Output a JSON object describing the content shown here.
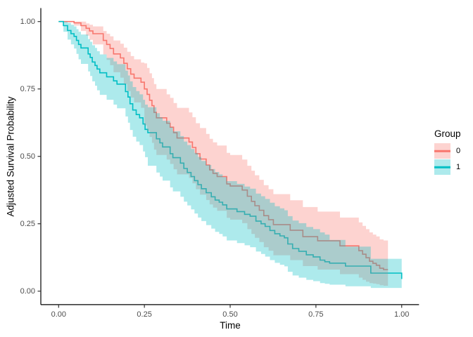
{
  "chart_data": {
    "type": "line",
    "subtype": "step-survival-curves-with-confidence-bands",
    "title": "",
    "xlabel": "Time",
    "ylabel": "Adjusted Survival Probability",
    "xlim": [
      0,
      1
    ],
    "ylim": [
      0,
      1
    ],
    "grid": "off",
    "x_ticks": [
      "0.00",
      "0.25",
      "0.50",
      "0.75",
      "1.00"
    ],
    "x_tick_values": [
      0,
      0.25,
      0.5,
      0.75,
      1
    ],
    "y_ticks": [
      "0.00",
      "0.25",
      "0.50",
      "0.75",
      "1.00"
    ],
    "y_tick_values": [
      0,
      0.25,
      0.5,
      0.75,
      1
    ],
    "legend": {
      "title": "Group",
      "position": "right",
      "entries": [
        {
          "label": "0"
        },
        {
          "label": "1"
        }
      ]
    },
    "band_opacity": 0.32,
    "series": [
      {
        "name": "0",
        "color": "#F8766D",
        "points_format": [
          "time",
          "survival",
          "ci_lower",
          "ci_upper"
        ],
        "points": [
          [
            0.0,
            1.0,
            1.0,
            1.0
          ],
          [
            0.045,
            0.995,
            0.985,
            1.0
          ],
          [
            0.065,
            0.985,
            0.965,
            1.0
          ],
          [
            0.08,
            0.975,
            0.948,
            0.993
          ],
          [
            0.09,
            0.965,
            0.932,
            0.988
          ],
          [
            0.1,
            0.955,
            0.915,
            0.982
          ],
          [
            0.13,
            0.93,
            0.878,
            0.965
          ],
          [
            0.14,
            0.915,
            0.858,
            0.955
          ],
          [
            0.15,
            0.9,
            0.838,
            0.945
          ],
          [
            0.16,
            0.88,
            0.812,
            0.93
          ],
          [
            0.18,
            0.865,
            0.792,
            0.918
          ],
          [
            0.19,
            0.845,
            0.768,
            0.903
          ],
          [
            0.2,
            0.825,
            0.742,
            0.888
          ],
          [
            0.21,
            0.805,
            0.718,
            0.872
          ],
          [
            0.22,
            0.79,
            0.7,
            0.86
          ],
          [
            0.24,
            0.775,
            0.68,
            0.848
          ],
          [
            0.25,
            0.75,
            0.615,
            0.845
          ],
          [
            0.258,
            0.73,
            0.595,
            0.828
          ],
          [
            0.265,
            0.708,
            0.572,
            0.808
          ],
          [
            0.272,
            0.688,
            0.55,
            0.79
          ],
          [
            0.278,
            0.663,
            0.525,
            0.768
          ],
          [
            0.285,
            0.643,
            0.505,
            0.75
          ],
          [
            0.315,
            0.623,
            0.488,
            0.73
          ],
          [
            0.325,
            0.608,
            0.472,
            0.717
          ],
          [
            0.335,
            0.588,
            0.452,
            0.698
          ],
          [
            0.345,
            0.568,
            0.433,
            0.68
          ],
          [
            0.38,
            0.553,
            0.42,
            0.663
          ],
          [
            0.39,
            0.533,
            0.4,
            0.645
          ],
          [
            0.4,
            0.51,
            0.378,
            0.623
          ],
          [
            0.412,
            0.49,
            0.358,
            0.605
          ],
          [
            0.43,
            0.468,
            0.338,
            0.583
          ],
          [
            0.44,
            0.45,
            0.322,
            0.565
          ],
          [
            0.45,
            0.437,
            0.31,
            0.552
          ],
          [
            0.462,
            0.425,
            0.298,
            0.54
          ],
          [
            0.49,
            0.398,
            0.272,
            0.513
          ],
          [
            0.5,
            0.39,
            0.265,
            0.505
          ],
          [
            0.535,
            0.375,
            0.252,
            0.488
          ],
          [
            0.55,
            0.352,
            0.23,
            0.465
          ],
          [
            0.562,
            0.333,
            0.212,
            0.447
          ],
          [
            0.572,
            0.317,
            0.198,
            0.43
          ],
          [
            0.585,
            0.3,
            0.182,
            0.413
          ],
          [
            0.598,
            0.28,
            0.163,
            0.393
          ],
          [
            0.612,
            0.265,
            0.15,
            0.378
          ],
          [
            0.626,
            0.247,
            0.133,
            0.36
          ],
          [
            0.675,
            0.226,
            0.115,
            0.337
          ],
          [
            0.712,
            0.202,
            0.093,
            0.312
          ],
          [
            0.755,
            0.187,
            0.08,
            0.295
          ],
          [
            0.82,
            0.168,
            0.063,
            0.273
          ],
          [
            0.875,
            0.15,
            0.05,
            0.255
          ],
          [
            0.886,
            0.137,
            0.042,
            0.242
          ],
          [
            0.896,
            0.124,
            0.035,
            0.23
          ],
          [
            0.906,
            0.111,
            0.03,
            0.218
          ],
          [
            0.916,
            0.103,
            0.028,
            0.21
          ],
          [
            0.926,
            0.096,
            0.026,
            0.203
          ],
          [
            0.936,
            0.085,
            0.022,
            0.192
          ],
          [
            0.947,
            0.08,
            0.02,
            0.188
          ],
          [
            0.96,
            0.08,
            0.02,
            0.188
          ]
        ]
      },
      {
        "name": "1",
        "color": "#00BFC4",
        "points_format": [
          "time",
          "survival",
          "ci_lower",
          "ci_upper"
        ],
        "points": [
          [
            0.0,
            1.0,
            1.0,
            1.0
          ],
          [
            0.014,
            0.985,
            0.962,
            1.0
          ],
          [
            0.026,
            0.967,
            0.933,
            0.995
          ],
          [
            0.036,
            0.955,
            0.915,
            0.988
          ],
          [
            0.045,
            0.945,
            0.9,
            0.982
          ],
          [
            0.052,
            0.93,
            0.88,
            0.972
          ],
          [
            0.058,
            0.915,
            0.86,
            0.962
          ],
          [
            0.065,
            0.902,
            0.843,
            0.952
          ],
          [
            0.086,
            0.88,
            0.815,
            0.935
          ],
          [
            0.092,
            0.867,
            0.798,
            0.925
          ],
          [
            0.098,
            0.85,
            0.778,
            0.912
          ],
          [
            0.106,
            0.837,
            0.762,
            0.902
          ],
          [
            0.112,
            0.824,
            0.745,
            0.89
          ],
          [
            0.12,
            0.81,
            0.728,
            0.878
          ],
          [
            0.14,
            0.795,
            0.71,
            0.865
          ],
          [
            0.16,
            0.78,
            0.692,
            0.852
          ],
          [
            0.17,
            0.768,
            0.678,
            0.842
          ],
          [
            0.195,
            0.74,
            0.648,
            0.818
          ],
          [
            0.202,
            0.72,
            0.625,
            0.8
          ],
          [
            0.208,
            0.695,
            0.598,
            0.778
          ],
          [
            0.216,
            0.672,
            0.573,
            0.757
          ],
          [
            0.226,
            0.655,
            0.555,
            0.742
          ],
          [
            0.236,
            0.643,
            0.542,
            0.73
          ],
          [
            0.246,
            0.62,
            0.518,
            0.71
          ],
          [
            0.252,
            0.6,
            0.497,
            0.692
          ],
          [
            0.26,
            0.588,
            0.465,
            0.682
          ],
          [
            0.285,
            0.565,
            0.44,
            0.66
          ],
          [
            0.295,
            0.55,
            0.425,
            0.645
          ],
          [
            0.303,
            0.535,
            0.41,
            0.632
          ],
          [
            0.325,
            0.51,
            0.385,
            0.608
          ],
          [
            0.333,
            0.495,
            0.37,
            0.593
          ],
          [
            0.355,
            0.475,
            0.35,
            0.575
          ],
          [
            0.365,
            0.455,
            0.332,
            0.555
          ],
          [
            0.375,
            0.44,
            0.318,
            0.542
          ],
          [
            0.386,
            0.425,
            0.303,
            0.527
          ],
          [
            0.396,
            0.41,
            0.288,
            0.513
          ],
          [
            0.406,
            0.395,
            0.273,
            0.498
          ],
          [
            0.416,
            0.38,
            0.26,
            0.483
          ],
          [
            0.43,
            0.365,
            0.245,
            0.468
          ],
          [
            0.445,
            0.35,
            0.232,
            0.453
          ],
          [
            0.456,
            0.338,
            0.22,
            0.442
          ],
          [
            0.468,
            0.33,
            0.212,
            0.433
          ],
          [
            0.478,
            0.32,
            0.203,
            0.423
          ],
          [
            0.49,
            0.305,
            0.188,
            0.408
          ],
          [
            0.52,
            0.295,
            0.178,
            0.398
          ],
          [
            0.542,
            0.285,
            0.17,
            0.388
          ],
          [
            0.558,
            0.278,
            0.163,
            0.38
          ],
          [
            0.575,
            0.26,
            0.147,
            0.362
          ],
          [
            0.59,
            0.25,
            0.138,
            0.352
          ],
          [
            0.602,
            0.24,
            0.128,
            0.342
          ],
          [
            0.616,
            0.225,
            0.115,
            0.328
          ],
          [
            0.63,
            0.213,
            0.105,
            0.315
          ],
          [
            0.645,
            0.205,
            0.098,
            0.307
          ],
          [
            0.658,
            0.198,
            0.092,
            0.3
          ],
          [
            0.668,
            0.175,
            0.072,
            0.278
          ],
          [
            0.682,
            0.158,
            0.058,
            0.262
          ],
          [
            0.7,
            0.148,
            0.05,
            0.252
          ],
          [
            0.722,
            0.135,
            0.042,
            0.238
          ],
          [
            0.742,
            0.127,
            0.037,
            0.23
          ],
          [
            0.762,
            0.115,
            0.03,
            0.218
          ],
          [
            0.776,
            0.109,
            0.027,
            0.21
          ],
          [
            0.79,
            0.104,
            0.024,
            0.19
          ],
          [
            0.836,
            0.093,
            0.018,
            0.165
          ],
          [
            0.91,
            0.067,
            0.012,
            0.12
          ],
          [
            0.995,
            0.067,
            0.012,
            0.12
          ],
          [
            1.0,
            0.045,
            0.012,
            0.12
          ]
        ]
      }
    ]
  }
}
